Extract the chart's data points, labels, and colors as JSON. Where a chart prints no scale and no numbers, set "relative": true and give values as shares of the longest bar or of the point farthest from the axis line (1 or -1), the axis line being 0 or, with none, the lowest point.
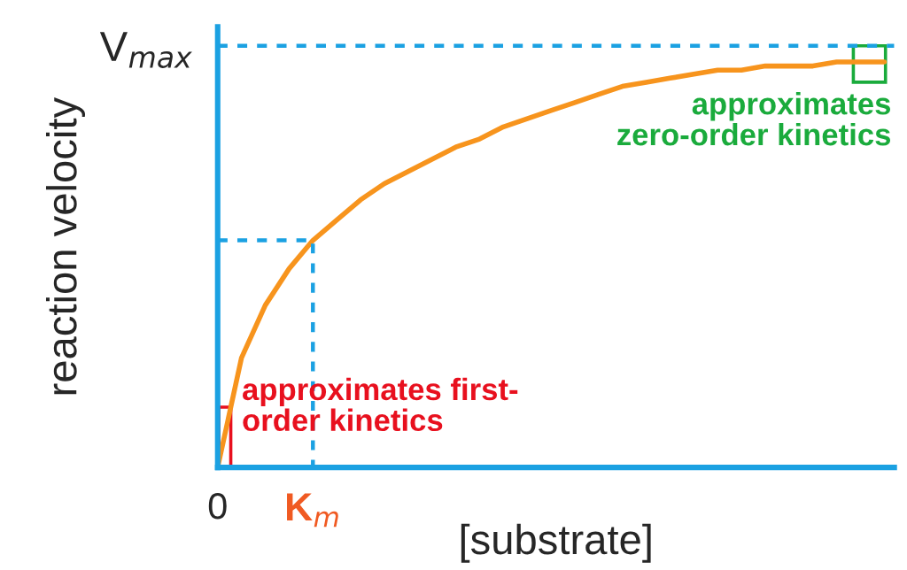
{
  "chart_data": {
    "type": "line",
    "relative": true,
    "xlabel": "[substrate]",
    "ylabel": "reaction velocity",
    "categories": [
      "0",
      null,
      null,
      null,
      "K$_{m}$",
      null,
      null,
      null,
      null,
      null,
      null,
      null,
      null,
      null,
      null,
      null,
      null,
      null,
      null,
      null,
      null,
      null,
      null,
      null,
      null,
      null,
      null,
      null,
      null
    ],
    "series": [
      {
        "color": "#f7941d",
        "values": [
          0,
          0.27,
          0.4,
          0.49,
          0.56,
          0.61,
          0.66,
          0.7,
          0.73,
          0.76,
          0.79,
          0.81,
          0.84,
          0.86,
          0.88,
          0.9,
          0.92,
          0.94,
          0.95,
          0.96,
          0.97,
          0.98,
          0.98,
          0.99,
          0.99,
          0.99,
          1.0,
          1.0,
          1.0
        ]
      }
    ],
    "ref_lines": [
      {
        "axis": "y",
        "value": 1.04,
        "label": "V$_{max}$",
        "color": "#1ba1e2",
        "line_style": "dashed"
      },
      {
        "axis": "y",
        "value": 0.56,
        "color": "#1ba1e2",
        "line_style": "dashed"
      }
    ],
    "annotations": [
      "approximates first-\norder kinetics",
      "approximates\nzero-order kinetics"
    ],
    "grid": false,
    "legend": false,
    "marker": "none",
    "line_style": "solid"
  }
}
